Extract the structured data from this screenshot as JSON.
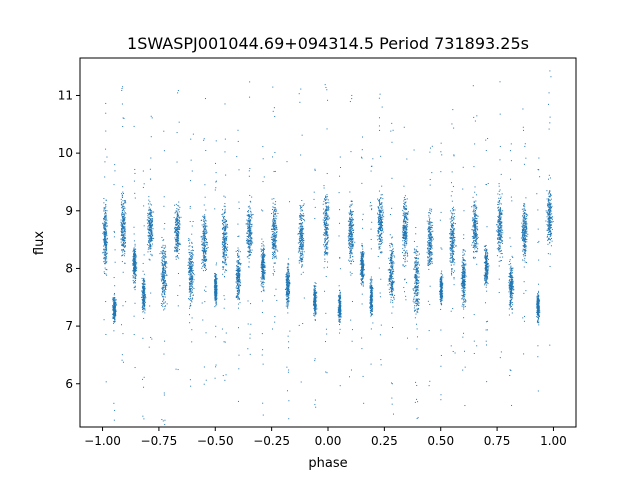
{
  "chart_data": {
    "type": "scatter",
    "title": "1SWASPJ001044.69+094314.5 Period 731893.25s",
    "xlabel": "phase",
    "ylabel": "flux",
    "xlim": [
      -1.1,
      1.1
    ],
    "ylim": [
      5.25,
      11.65
    ],
    "xticks": [
      "−1.00",
      "−0.75",
      "−0.50",
      "−0.25",
      "0.00",
      "0.25",
      "0.50",
      "0.75",
      "1.00"
    ],
    "xtick_values": [
      -1.0,
      -0.75,
      -0.5,
      -0.25,
      0.0,
      0.25,
      0.5,
      0.75,
      1.0
    ],
    "yticks": [
      "6",
      "7",
      "8",
      "9",
      "10",
      "11"
    ],
    "ytick_values": [
      6,
      7,
      8,
      9,
      10,
      11
    ],
    "grid": false,
    "point_color": "#1f77b4",
    "series": [
      {
        "points_note_excluded": true,
        "clusters": [
          {
            "x": -0.99,
            "y": 8.55,
            "w": 0.015,
            "h": 0.9
          },
          {
            "x": -0.95,
            "y": 7.3,
            "w": 0.012,
            "h": 0.35
          },
          {
            "x": -0.91,
            "y": 8.75,
            "w": 0.02,
            "h": 0.9
          },
          {
            "x": -0.86,
            "y": 8.1,
            "w": 0.012,
            "h": 0.5
          },
          {
            "x": -0.82,
            "y": 7.55,
            "w": 0.012,
            "h": 0.5
          },
          {
            "x": -0.79,
            "y": 8.7,
            "w": 0.02,
            "h": 0.7
          },
          {
            "x": -0.73,
            "y": 7.9,
            "w": 0.02,
            "h": 0.9
          },
          {
            "x": -0.67,
            "y": 8.65,
            "w": 0.02,
            "h": 0.7
          },
          {
            "x": -0.61,
            "y": 7.95,
            "w": 0.02,
            "h": 1.0
          },
          {
            "x": -0.55,
            "y": 8.45,
            "w": 0.02,
            "h": 0.8
          },
          {
            "x": -0.5,
            "y": 7.65,
            "w": 0.01,
            "h": 0.4
          },
          {
            "x": -0.46,
            "y": 8.5,
            "w": 0.02,
            "h": 1.0
          },
          {
            "x": -0.4,
            "y": 7.85,
            "w": 0.015,
            "h": 0.7
          },
          {
            "x": -0.35,
            "y": 8.65,
            "w": 0.02,
            "h": 0.8
          },
          {
            "x": -0.29,
            "y": 8.05,
            "w": 0.015,
            "h": 0.6
          },
          {
            "x": -0.24,
            "y": 8.6,
            "w": 0.02,
            "h": 0.9
          },
          {
            "x": -0.18,
            "y": 7.7,
            "w": 0.015,
            "h": 0.6
          },
          {
            "x": -0.12,
            "y": 8.55,
            "w": 0.02,
            "h": 0.9
          },
          {
            "x": -0.06,
            "y": 7.45,
            "w": 0.01,
            "h": 0.4
          },
          {
            "x": -0.01,
            "y": 8.75,
            "w": 0.02,
            "h": 1.0
          },
          {
            "x": 0.05,
            "y": 7.35,
            "w": 0.01,
            "h": 0.4
          },
          {
            "x": 0.1,
            "y": 8.6,
            "w": 0.02,
            "h": 0.9
          },
          {
            "x": 0.15,
            "y": 8.05,
            "w": 0.012,
            "h": 0.5
          },
          {
            "x": 0.19,
            "y": 7.5,
            "w": 0.01,
            "h": 0.5
          },
          {
            "x": 0.23,
            "y": 8.8,
            "w": 0.02,
            "h": 0.8
          },
          {
            "x": 0.28,
            "y": 7.95,
            "w": 0.02,
            "h": 0.9
          },
          {
            "x": 0.34,
            "y": 8.7,
            "w": 0.02,
            "h": 0.9
          },
          {
            "x": 0.39,
            "y": 7.8,
            "w": 0.02,
            "h": 1.0
          },
          {
            "x": 0.45,
            "y": 8.5,
            "w": 0.02,
            "h": 0.8
          },
          {
            "x": 0.5,
            "y": 7.65,
            "w": 0.01,
            "h": 0.4
          },
          {
            "x": 0.55,
            "y": 8.5,
            "w": 0.02,
            "h": 1.0
          },
          {
            "x": 0.6,
            "y": 7.85,
            "w": 0.015,
            "h": 0.8
          },
          {
            "x": 0.65,
            "y": 8.7,
            "w": 0.02,
            "h": 0.8
          },
          {
            "x": 0.7,
            "y": 8.05,
            "w": 0.015,
            "h": 0.6
          },
          {
            "x": 0.76,
            "y": 8.75,
            "w": 0.02,
            "h": 0.9
          },
          {
            "x": 0.81,
            "y": 7.7,
            "w": 0.015,
            "h": 0.6
          },
          {
            "x": 0.87,
            "y": 8.65,
            "w": 0.02,
            "h": 0.8
          },
          {
            "x": 0.93,
            "y": 7.35,
            "w": 0.01,
            "h": 0.4
          },
          {
            "x": 0.98,
            "y": 8.9,
            "w": 0.02,
            "h": 0.8
          }
        ]
      }
    ]
  }
}
